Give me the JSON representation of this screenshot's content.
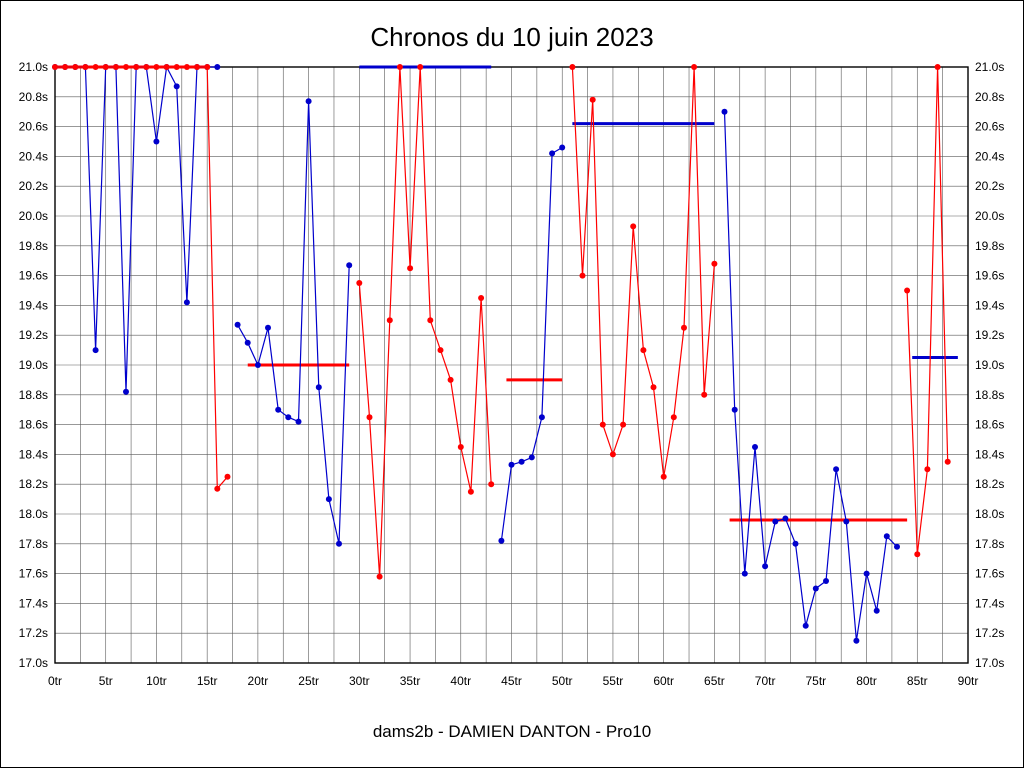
{
  "chart_data": {
    "type": "line",
    "title": "Chronos du 10 juin 2023",
    "subtitle": "dams2b - DAMIEN DANTON - Pro10",
    "x_unit": "tr",
    "y_unit": "s",
    "x_min": 0,
    "x_max": 90,
    "x_tick_step": 5,
    "x_grid_step": 2.5,
    "y_min": 17.0,
    "y_max": 21.0,
    "y_tick_step": 0.2,
    "grid": true,
    "legend": "none",
    "y_ticks": [
      "21.0s",
      "20.8s",
      "20.6s",
      "20.4s",
      "20.2s",
      "20.0s",
      "19.8s",
      "19.6s",
      "19.4s",
      "19.2s",
      "19.0s",
      "18.8s",
      "18.6s",
      "18.4s",
      "18.2s",
      "18.0s",
      "17.8s",
      "17.6s",
      "17.4s",
      "17.2s",
      "17.0s"
    ],
    "x_ticks": [
      "0tr",
      "5tr",
      "10tr",
      "15tr",
      "20tr",
      "25tr",
      "30tr",
      "35tr",
      "40tr",
      "45tr",
      "50tr",
      "55tr",
      "60tr",
      "65tr",
      "70tr",
      "75tr",
      "80tr",
      "85tr",
      "90tr"
    ],
    "series": [
      {
        "name": "blue",
        "color": "#0000cc",
        "runs": [
          [
            [
              0,
              21.0
            ],
            [
              1,
              21.0
            ],
            [
              2,
              21.0
            ],
            [
              3,
              21.0
            ],
            [
              4,
              19.1
            ],
            [
              5,
              21.0
            ],
            [
              6,
              21.0
            ],
            [
              7,
              18.82
            ],
            [
              8,
              21.0
            ],
            [
              9,
              21.0
            ],
            [
              10,
              20.5
            ],
            [
              11,
              21.0
            ],
            [
              12,
              20.87
            ],
            [
              13,
              19.42
            ],
            [
              14,
              21.0
            ],
            [
              15,
              21.0
            ],
            [
              16,
              21.0
            ]
          ],
          [
            [
              18,
              19.27
            ],
            [
              19,
              19.15
            ],
            [
              20,
              19.0
            ],
            [
              21,
              19.25
            ],
            [
              22,
              18.7
            ],
            [
              23,
              18.65
            ],
            [
              24,
              18.62
            ],
            [
              25,
              20.77
            ],
            [
              26,
              18.85
            ],
            [
              27,
              18.1
            ],
            [
              28,
              17.8
            ],
            [
              29,
              19.67
            ]
          ],
          [
            [
              44,
              17.82
            ],
            [
              45,
              18.33
            ],
            [
              46,
              18.35
            ],
            [
              47,
              18.38
            ],
            [
              48,
              18.65
            ],
            [
              49,
              20.42
            ],
            [
              50,
              20.46
            ]
          ],
          [
            [
              66,
              20.7
            ],
            [
              67,
              18.7
            ],
            [
              68,
              17.6
            ],
            [
              69,
              18.45
            ],
            [
              70,
              17.65
            ],
            [
              71,
              17.95
            ],
            [
              72,
              17.97
            ],
            [
              73,
              17.8
            ],
            [
              74,
              17.25
            ],
            [
              75,
              17.5
            ],
            [
              76,
              17.55
            ],
            [
              77,
              18.3
            ],
            [
              78,
              17.95
            ],
            [
              79,
              17.15
            ],
            [
              80,
              17.6
            ],
            [
              81,
              17.35
            ],
            [
              82,
              17.85
            ],
            [
              83,
              17.78
            ]
          ]
        ]
      },
      {
        "name": "red",
        "color": "#ff0000",
        "runs": [
          [
            [
              0,
              21.0
            ],
            [
              1,
              21.0
            ],
            [
              2,
              21.0
            ],
            [
              3,
              21.0
            ],
            [
              4,
              21.0
            ],
            [
              5,
              21.0
            ],
            [
              6,
              21.0
            ],
            [
              7,
              21.0
            ],
            [
              8,
              21.0
            ],
            [
              9,
              21.0
            ],
            [
              10,
              21.0
            ],
            [
              11,
              21.0
            ],
            [
              12,
              21.0
            ],
            [
              13,
              21.0
            ],
            [
              14,
              21.0
            ],
            [
              15,
              21.0
            ],
            [
              16,
              18.17
            ],
            [
              17,
              18.25
            ]
          ],
          [
            [
              30,
              19.55
            ],
            [
              31,
              18.65
            ],
            [
              32,
              17.58
            ],
            [
              33,
              19.3
            ],
            [
              34,
              21.0
            ],
            [
              35,
              19.65
            ],
            [
              36,
              21.0
            ],
            [
              37,
              19.3
            ],
            [
              38,
              19.1
            ],
            [
              39,
              18.9
            ],
            [
              40,
              18.45
            ],
            [
              41,
              18.15
            ],
            [
              42,
              19.45
            ],
            [
              43,
              18.2
            ]
          ],
          [
            [
              51,
              21.0
            ],
            [
              52,
              19.6
            ],
            [
              53,
              20.78
            ],
            [
              54,
              18.6
            ],
            [
              55,
              18.4
            ],
            [
              56,
              18.6
            ],
            [
              57,
              19.93
            ],
            [
              58,
              19.1
            ],
            [
              59,
              18.85
            ],
            [
              60,
              18.25
            ],
            [
              61,
              18.65
            ],
            [
              62,
              19.25
            ],
            [
              63,
              21.0
            ],
            [
              64,
              18.8
            ],
            [
              65,
              19.68
            ]
          ],
          [
            [
              84,
              19.5
            ],
            [
              85,
              17.73
            ],
            [
              86,
              18.3
            ],
            [
              87,
              21.0
            ],
            [
              88,
              18.35
            ]
          ]
        ]
      }
    ],
    "segment_averages": [
      {
        "color": "#ff0000",
        "from_lap": 0,
        "to_lap": 15,
        "value": 21.0
      },
      {
        "color": "#ff0000",
        "from_lap": 19,
        "to_lap": 29,
        "value": 19.0
      },
      {
        "color": "#0000cc",
        "from_lap": 30,
        "to_lap": 43,
        "value": 21.0
      },
      {
        "color": "#ff0000",
        "from_lap": 44.5,
        "to_lap": 50,
        "value": 18.9
      },
      {
        "color": "#0000cc",
        "from_lap": 51,
        "to_lap": 65,
        "value": 20.62
      },
      {
        "color": "#ff0000",
        "from_lap": 66.5,
        "to_lap": 84,
        "value": 17.96
      },
      {
        "color": "#0000cc",
        "from_lap": 84.5,
        "to_lap": 89,
        "value": 19.05
      }
    ]
  }
}
